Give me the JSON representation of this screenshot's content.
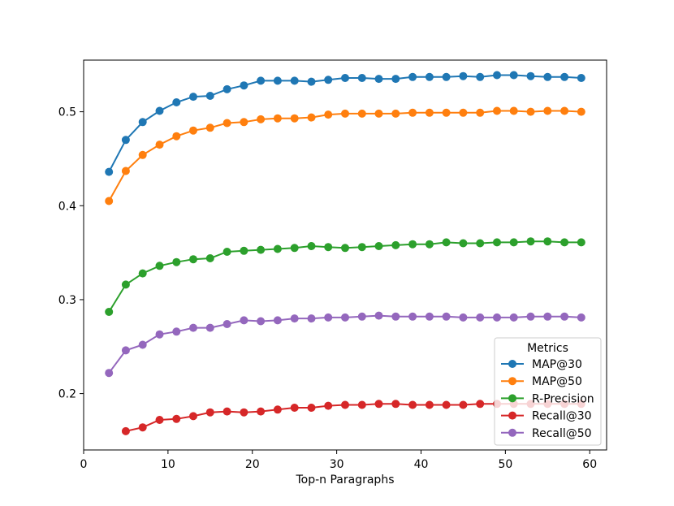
{
  "chart_data": {
    "type": "line",
    "title": "",
    "xlabel": "Top-n Paragraphs",
    "ylabel": "",
    "xlim": [
      0,
      62
    ],
    "ylim": [
      0.14,
      0.555
    ],
    "xticks": [
      0,
      10,
      20,
      30,
      40,
      50,
      60
    ],
    "yticks": [
      0.2,
      0.3,
      0.4,
      0.5
    ],
    "x": [
      3,
      5,
      7,
      9,
      11,
      13,
      15,
      17,
      19,
      21,
      23,
      25,
      27,
      29,
      31,
      33,
      35,
      37,
      39,
      41,
      43,
      45,
      47,
      49,
      51,
      53,
      55,
      57,
      59
    ],
    "legend": {
      "title": "Metrics",
      "placement": "lower right"
    },
    "series": [
      {
        "name": "MAP@30",
        "color": "#1f77b4",
        "values": [
          0.436,
          0.47,
          0.489,
          0.501,
          0.51,
          0.516,
          0.517,
          0.524,
          0.528,
          0.533,
          0.533,
          0.533,
          0.532,
          0.534,
          0.536,
          0.536,
          0.535,
          0.535,
          0.537,
          0.537,
          0.537,
          0.538,
          0.537,
          0.539,
          0.539,
          0.538,
          0.537,
          0.537,
          0.536
        ]
      },
      {
        "name": "MAP@50",
        "color": "#ff7f0e",
        "values": [
          0.405,
          0.437,
          0.454,
          0.465,
          0.474,
          0.48,
          0.483,
          0.488,
          0.489,
          0.492,
          0.493,
          0.493,
          0.494,
          0.497,
          0.498,
          0.498,
          0.498,
          0.498,
          0.499,
          0.499,
          0.499,
          0.499,
          0.499,
          0.501,
          0.501,
          0.5,
          0.501,
          0.501,
          0.5
        ]
      },
      {
        "name": "R-Precision",
        "color": "#2ca02c",
        "values": [
          0.287,
          0.316,
          0.328,
          0.336,
          0.34,
          0.343,
          0.344,
          0.351,
          0.352,
          0.353,
          0.354,
          0.355,
          0.357,
          0.356,
          0.355,
          0.356,
          0.357,
          0.358,
          0.359,
          0.359,
          0.361,
          0.36,
          0.36,
          0.361,
          0.361,
          0.362,
          0.362,
          0.361,
          0.361
        ]
      },
      {
        "name": "Recall@30",
        "color": "#d62728",
        "values": [
          null,
          0.16,
          0.164,
          0.172,
          0.173,
          0.176,
          0.18,
          0.181,
          0.18,
          0.181,
          0.183,
          0.185,
          0.185,
          0.187,
          0.188,
          0.188,
          0.189,
          0.189,
          0.188,
          0.188,
          0.188,
          0.188,
          0.189,
          0.189,
          0.189,
          0.189,
          0.189,
          0.189,
          0.189
        ]
      },
      {
        "name": "Recall@50",
        "color": "#9467bd",
        "values": [
          0.222,
          0.246,
          0.252,
          0.263,
          0.266,
          0.27,
          0.27,
          0.274,
          0.278,
          0.277,
          0.278,
          0.28,
          0.28,
          0.281,
          0.281,
          0.282,
          0.283,
          0.282,
          0.282,
          0.282,
          0.282,
          0.281,
          0.281,
          0.281,
          0.281,
          0.282,
          0.282,
          0.282,
          0.281
        ]
      }
    ]
  }
}
